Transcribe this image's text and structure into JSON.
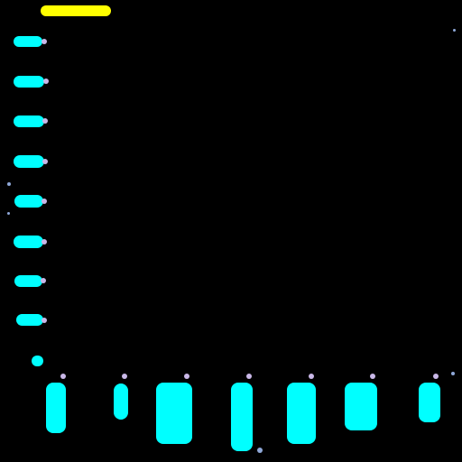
{
  "colors": {
    "background": "#000000",
    "status_bar": "#FFFF00",
    "cell": "#00FFFF",
    "marker": "#C9B8E8",
    "stray": "#8FA8D8"
  },
  "icons": {
    "row_cell": "cyan-blob",
    "column_cell": "cyan-column-blob",
    "marker": "lavender-dot"
  }
}
